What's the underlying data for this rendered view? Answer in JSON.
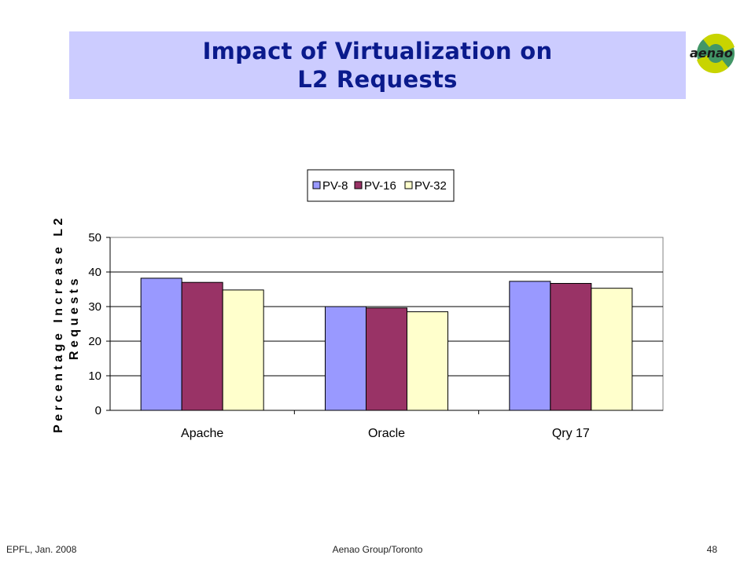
{
  "slide": {
    "title_line1": "Impact of Virtualization on",
    "title_line2": "L2 Requests",
    "logo_text": "aenao",
    "footer_left": "EPFL, Jan. 2008",
    "footer_center": "Aenao Group/Toronto",
    "footer_right": "48"
  },
  "chart_data": {
    "type": "bar",
    "title": "",
    "xlabel": "",
    "ylabel_line1": "Percentage Increase L2",
    "ylabel_line2": "Requests",
    "categories": [
      "Apache",
      "Oracle",
      "Qry 17"
    ],
    "series": [
      {
        "name": "PV-8",
        "color": "#9999ff",
        "values": [
          38.2,
          30.0,
          37.3
        ]
      },
      {
        "name": "PV-16",
        "color": "#993366",
        "values": [
          37.0,
          29.6,
          36.7
        ]
      },
      {
        "name": "PV-32",
        "color": "#ffffcc",
        "values": [
          34.8,
          28.5,
          35.3
        ]
      }
    ],
    "ylim": [
      0,
      50
    ],
    "yticks": [
      0,
      10,
      20,
      30,
      40,
      50
    ],
    "grid": true,
    "legend": "top-center"
  }
}
